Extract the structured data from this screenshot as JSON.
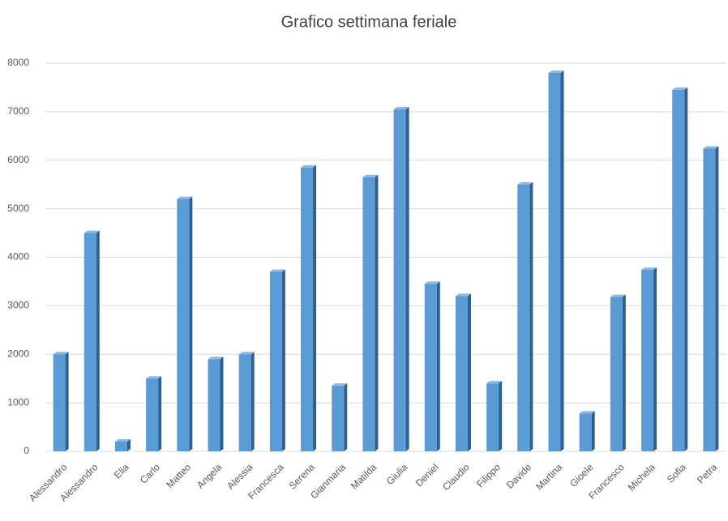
{
  "chart_data": {
    "type": "bar",
    "title": "Grafico settimana feriale",
    "categories": [
      "Alessandro",
      "Alessandro",
      "Elia",
      "Carlo",
      "Matteo",
      "Angela",
      "Alessia",
      "Francesca",
      "Serena",
      "Gianmaria",
      "Matilda",
      "Giulia",
      "Deniel",
      "Claudio",
      "Filippo",
      "Davide",
      "Martina",
      "Gioele",
      "Francesco",
      "Michela",
      "Sofia",
      "Petra"
    ],
    "values": [
      2000,
      4500,
      200,
      1500,
      5200,
      1900,
      2000,
      3700,
      5850,
      1350,
      5650,
      7050,
      3450,
      3200,
      1400,
      5500,
      7800,
      780,
      3180,
      3740,
      7450,
      6240
    ],
    "color": "#5b9bd5",
    "ylim": [
      0,
      8000
    ],
    "yticks": [
      0,
      1000,
      2000,
      3000,
      4000,
      5000,
      6000,
      7000,
      8000
    ],
    "grid": true
  }
}
